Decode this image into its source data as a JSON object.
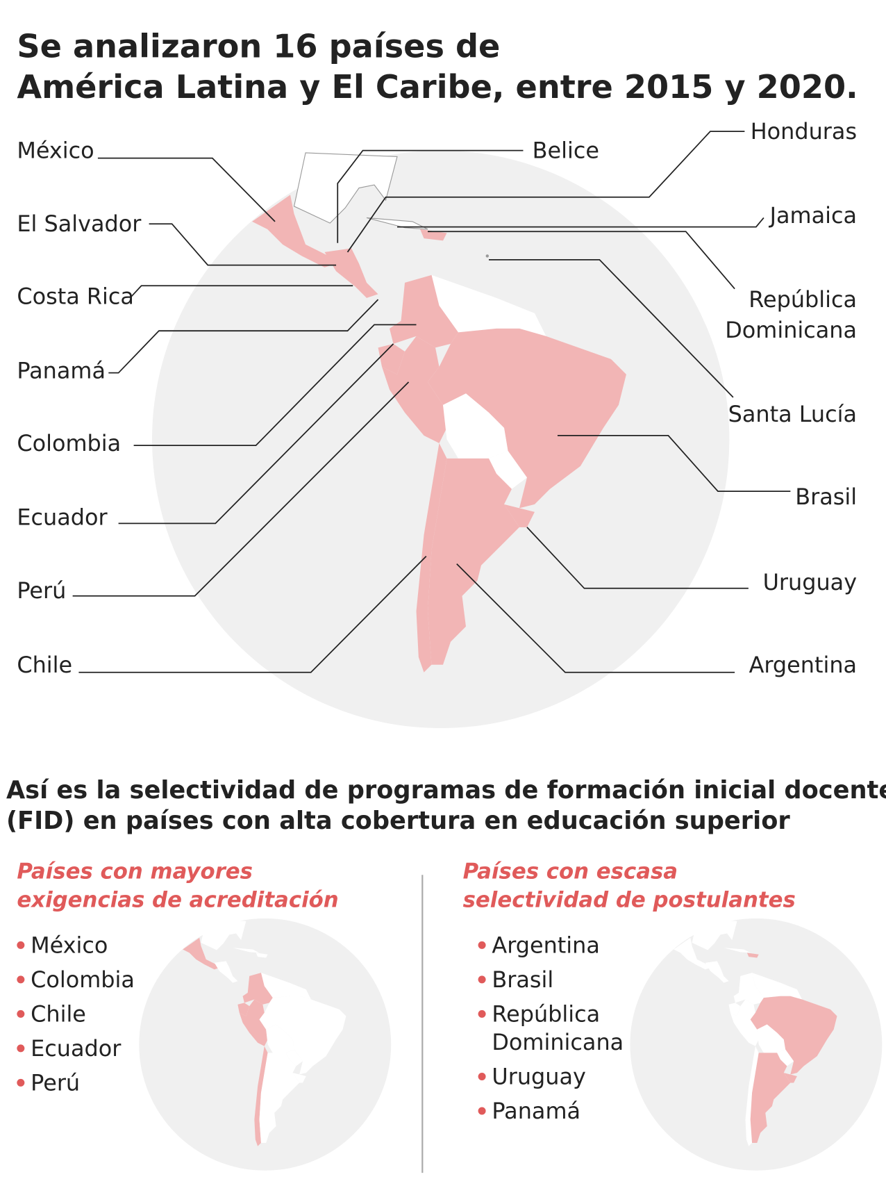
{
  "title": [
    "Se analizaron 16 países de",
    "América Latina y El Caribe, entre 2015 y 2020."
  ],
  "map": {
    "left_labels": [
      "México",
      "El Salvador",
      "Costa Rica",
      "Panamá",
      "Colombia",
      "Ecuador",
      "Perú",
      "Chile"
    ],
    "right_labels": [
      "Belice",
      "Honduras",
      "Jamaica",
      [
        "República",
        "Dominicana"
      ],
      "Santa Lucía",
      "Brasil",
      "Uruguay",
      "Argentina"
    ]
  },
  "section_title": [
    "Así es la selectividad de programas de formación inicial docente",
    "(FID) en países con alta cobertura en educación superior"
  ],
  "panels": [
    {
      "heading": [
        "Países con mayores",
        "exigencias de acreditación"
      ],
      "items": [
        "México",
        "Colombia",
        "Chile",
        "Ecuador",
        "Perú"
      ]
    },
    {
      "heading": [
        "Países con escasa",
        "selectividad de postulantes"
      ],
      "items": [
        "Argentina",
        "Brasil",
        [
          "República",
          "Dominicana"
        ],
        "Uruguay",
        "Panamá"
      ]
    }
  ]
}
